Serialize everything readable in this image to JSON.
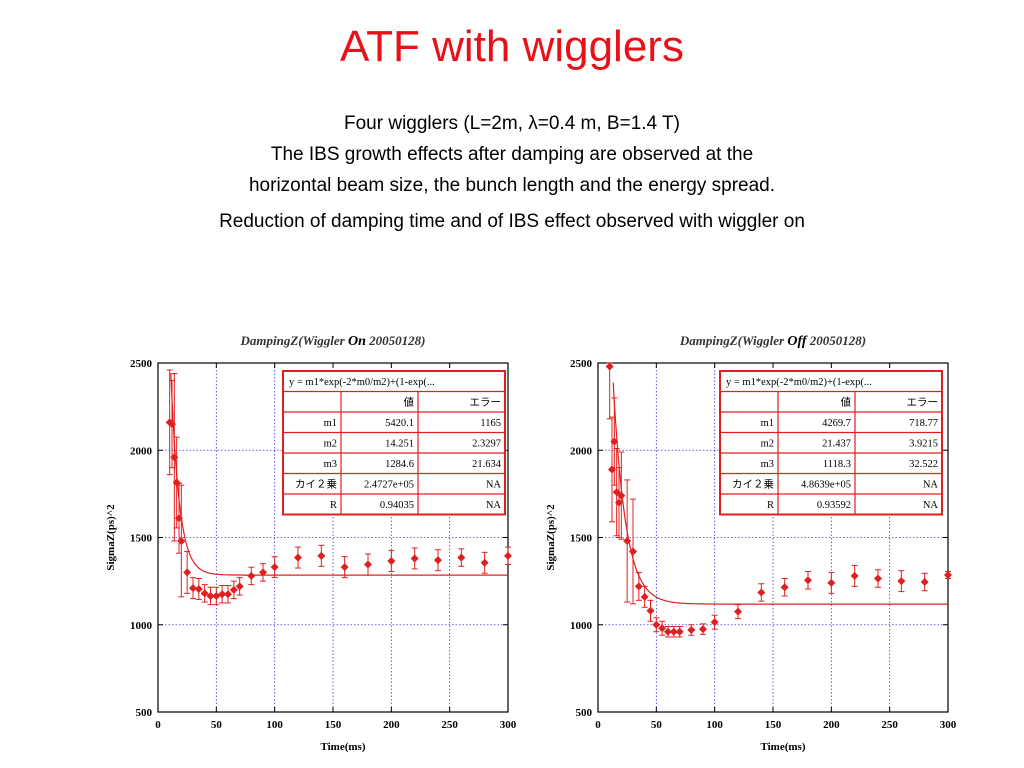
{
  "slide": {
    "title": "ATF with wigglers",
    "lines": [
      "Four wigglers (L=2m, λ=0.4 m, B=1.4 T)",
      "The IBS growth effects after damping are observed at the",
      "horizontal beam size, the bunch length and the energy spread.",
      "Reduction of damping time and of IBS effect observed with wiggler on"
    ]
  },
  "colors": {
    "title": "#e8111a",
    "series": "#e02020",
    "grid": "#3a3ae0",
    "axis": "#000000"
  },
  "chart_data": [
    {
      "type": "scatter",
      "title": "DampingZ(Wiggler On 20050128)",
      "title_parts": [
        "DampingZ(Wiggler ",
        "On",
        " 20050128)"
      ],
      "xlabel": "Time(ms)",
      "ylabel": "SigmaZ(ps)^2",
      "xlim": [
        0,
        300
      ],
      "ylim": [
        500,
        2500
      ],
      "xticks": [
        0,
        50,
        100,
        150,
        200,
        250,
        300
      ],
      "yticks": [
        500,
        1000,
        1500,
        2000,
        2500
      ],
      "grid": true,
      "fit_label": "y = m1*exp(-2*m0/m2)+(1-exp(...",
      "fit_table": {
        "headers": [
          "",
          "値",
          "エラー"
        ],
        "rows": [
          [
            "m1",
            "5420.1",
            "1165"
          ],
          [
            "m2",
            "14.251",
            "2.3297"
          ],
          [
            "m3",
            "1284.6",
            "21.634"
          ],
          [
            "カイ２乗",
            "2.4727e+05",
            "NA"
          ],
          [
            "R",
            "0.94035",
            "NA"
          ]
        ]
      },
      "fit_params": {
        "m1": 5420.1,
        "m2": 14.251,
        "m3": 1284.6
      },
      "points": [
        {
          "x": 10,
          "y": 2160,
          "err": 300
        },
        {
          "x": 12,
          "y": 2150,
          "err": 250
        },
        {
          "x": 14,
          "y": 1960,
          "err": 480
        },
        {
          "x": 16,
          "y": 1815,
          "err": 260
        },
        {
          "x": 18,
          "y": 1610,
          "err": 200
        },
        {
          "x": 20,
          "y": 1480,
          "err": 320
        },
        {
          "x": 25,
          "y": 1300,
          "err": 120
        },
        {
          "x": 30,
          "y": 1210,
          "err": 60
        },
        {
          "x": 35,
          "y": 1205,
          "err": 60
        },
        {
          "x": 40,
          "y": 1180,
          "err": 50
        },
        {
          "x": 45,
          "y": 1165,
          "err": 50
        },
        {
          "x": 50,
          "y": 1165,
          "err": 50
        },
        {
          "x": 55,
          "y": 1175,
          "err": 50
        },
        {
          "x": 60,
          "y": 1175,
          "err": 50
        },
        {
          "x": 65,
          "y": 1200,
          "err": 50
        },
        {
          "x": 70,
          "y": 1220,
          "err": 50
        },
        {
          "x": 80,
          "y": 1280,
          "err": 50
        },
        {
          "x": 90,
          "y": 1300,
          "err": 50
        },
        {
          "x": 100,
          "y": 1330,
          "err": 60
        },
        {
          "x": 120,
          "y": 1385,
          "err": 60
        },
        {
          "x": 140,
          "y": 1395,
          "err": 60
        },
        {
          "x": 160,
          "y": 1330,
          "err": 60
        },
        {
          "x": 180,
          "y": 1345,
          "err": 60
        },
        {
          "x": 200,
          "y": 1365,
          "err": 60
        },
        {
          "x": 220,
          "y": 1380,
          "err": 60
        },
        {
          "x": 240,
          "y": 1370,
          "err": 60
        },
        {
          "x": 260,
          "y": 1385,
          "err": 50
        },
        {
          "x": 280,
          "y": 1355,
          "err": 60
        },
        {
          "x": 300,
          "y": 1395,
          "err": 50
        }
      ]
    },
    {
      "type": "scatter",
      "title": "DampingZ(Wiggler Off 20050128)",
      "title_parts": [
        "DampingZ(Wiggler ",
        "Off",
        " 20050128)"
      ],
      "xlabel": "Time(ms)",
      "ylabel": "SigmaZ(ps)^2",
      "xlim": [
        0,
        300
      ],
      "ylim": [
        500,
        2500
      ],
      "xticks": [
        0,
        50,
        100,
        150,
        200,
        250,
        300
      ],
      "yticks": [
        500,
        1000,
        1500,
        2000,
        2500
      ],
      "grid": true,
      "fit_label": "y = m1*exp(-2*m0/m2)+(1-exp(...",
      "fit_table": {
        "headers": [
          "",
          "値",
          "エラー"
        ],
        "rows": [
          [
            "m1",
            "4269.7",
            "718.77"
          ],
          [
            "m2",
            "21.437",
            "3.9215"
          ],
          [
            "m3",
            "1118.3",
            "32.522"
          ],
          [
            "カイ２乗",
            "4.8639e+05",
            "NA"
          ],
          [
            "R",
            "0.93592",
            "NA"
          ]
        ]
      },
      "fit_params": {
        "m1": 4269.7,
        "m2": 21.437,
        "m3": 1118.3
      },
      "points": [
        {
          "x": 10,
          "y": 2480,
          "err": 300
        },
        {
          "x": 12,
          "y": 1890,
          "err": 300
        },
        {
          "x": 14,
          "y": 2050,
          "err": 250
        },
        {
          "x": 16,
          "y": 1760,
          "err": 250
        },
        {
          "x": 18,
          "y": 1700,
          "err": 200
        },
        {
          "x": 20,
          "y": 1740,
          "err": 250
        },
        {
          "x": 25,
          "y": 1480,
          "err": 350
        },
        {
          "x": 30,
          "y": 1420,
          "err": 300
        },
        {
          "x": 35,
          "y": 1220,
          "err": 80
        },
        {
          "x": 40,
          "y": 1160,
          "err": 60
        },
        {
          "x": 45,
          "y": 1080,
          "err": 60
        },
        {
          "x": 50,
          "y": 1000,
          "err": 40
        },
        {
          "x": 55,
          "y": 980,
          "err": 40
        },
        {
          "x": 60,
          "y": 960,
          "err": 30
        },
        {
          "x": 65,
          "y": 960,
          "err": 30
        },
        {
          "x": 70,
          "y": 960,
          "err": 30
        },
        {
          "x": 80,
          "y": 970,
          "err": 30
        },
        {
          "x": 90,
          "y": 975,
          "err": 30
        },
        {
          "x": 100,
          "y": 1015,
          "err": 40
        },
        {
          "x": 120,
          "y": 1075,
          "err": 40
        },
        {
          "x": 140,
          "y": 1185,
          "err": 50
        },
        {
          "x": 160,
          "y": 1215,
          "err": 50
        },
        {
          "x": 180,
          "y": 1255,
          "err": 50
        },
        {
          "x": 200,
          "y": 1240,
          "err": 60
        },
        {
          "x": 220,
          "y": 1280,
          "err": 60
        },
        {
          "x": 240,
          "y": 1265,
          "err": 50
        },
        {
          "x": 260,
          "y": 1250,
          "err": 60
        },
        {
          "x": 280,
          "y": 1245,
          "err": 50
        },
        {
          "x": 300,
          "y": 1285,
          "err": 20
        }
      ]
    }
  ]
}
